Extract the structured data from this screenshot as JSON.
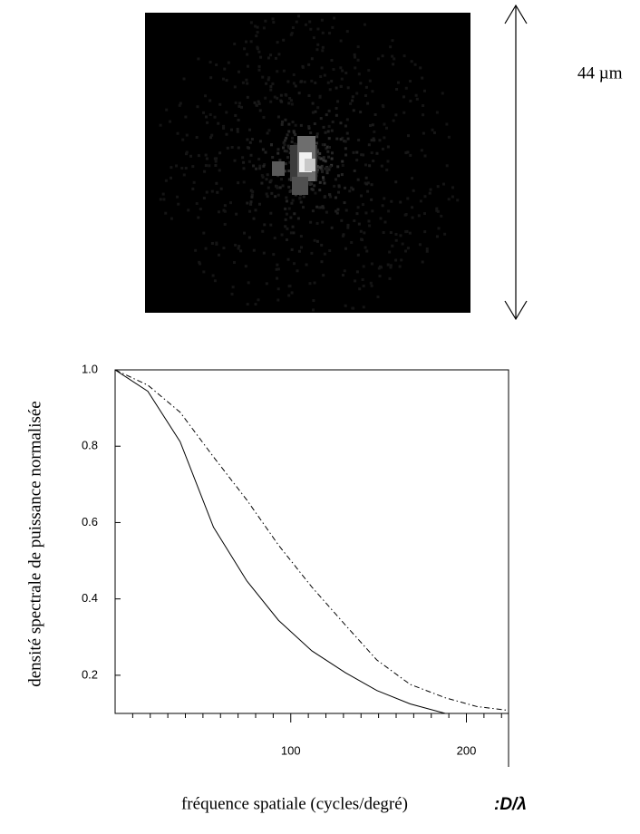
{
  "scale_label": "44 µm",
  "chart_data": {
    "type": "line",
    "ylabel": "densité spectrale de puissance normalisée",
    "xlabel": "fréquence spatiale (cycles/degré)",
    "xunit_label": ":D/λ",
    "xlim": [
      0,
      224
    ],
    "ylim": [
      0.1,
      1.0
    ],
    "xticks": [
      100,
      200
    ],
    "xminorticks": [
      10,
      20,
      30,
      40,
      50,
      60,
      70,
      80,
      90,
      110,
      120,
      130,
      140,
      150,
      160,
      170,
      180,
      190,
      210,
      220
    ],
    "yticks": [
      0.2,
      0.4,
      0.6,
      0.8,
      {
        "value": 1,
        "label": "1.0"
      }
    ],
    "x": [
      0,
      18.6,
      37,
      56,
      75,
      93,
      112,
      131,
      149,
      168,
      188,
      206,
      224
    ],
    "series": [
      {
        "color": "#000000",
        "dash": "solid",
        "values": [
          1.0,
          0.944,
          0.812,
          0.588,
          0.447,
          0.344,
          0.264,
          0.207,
          0.16,
          0.125,
          0.1,
          0.1,
          0.1
        ]
      },
      {
        "color": "#000000",
        "dash": "dashdot",
        "values": [
          1.0,
          0.96,
          0.889,
          0.772,
          0.659,
          0.541,
          0.431,
          0.332,
          0.24,
          0.176,
          0.141,
          0.118,
          0.108
        ]
      }
    ]
  }
}
